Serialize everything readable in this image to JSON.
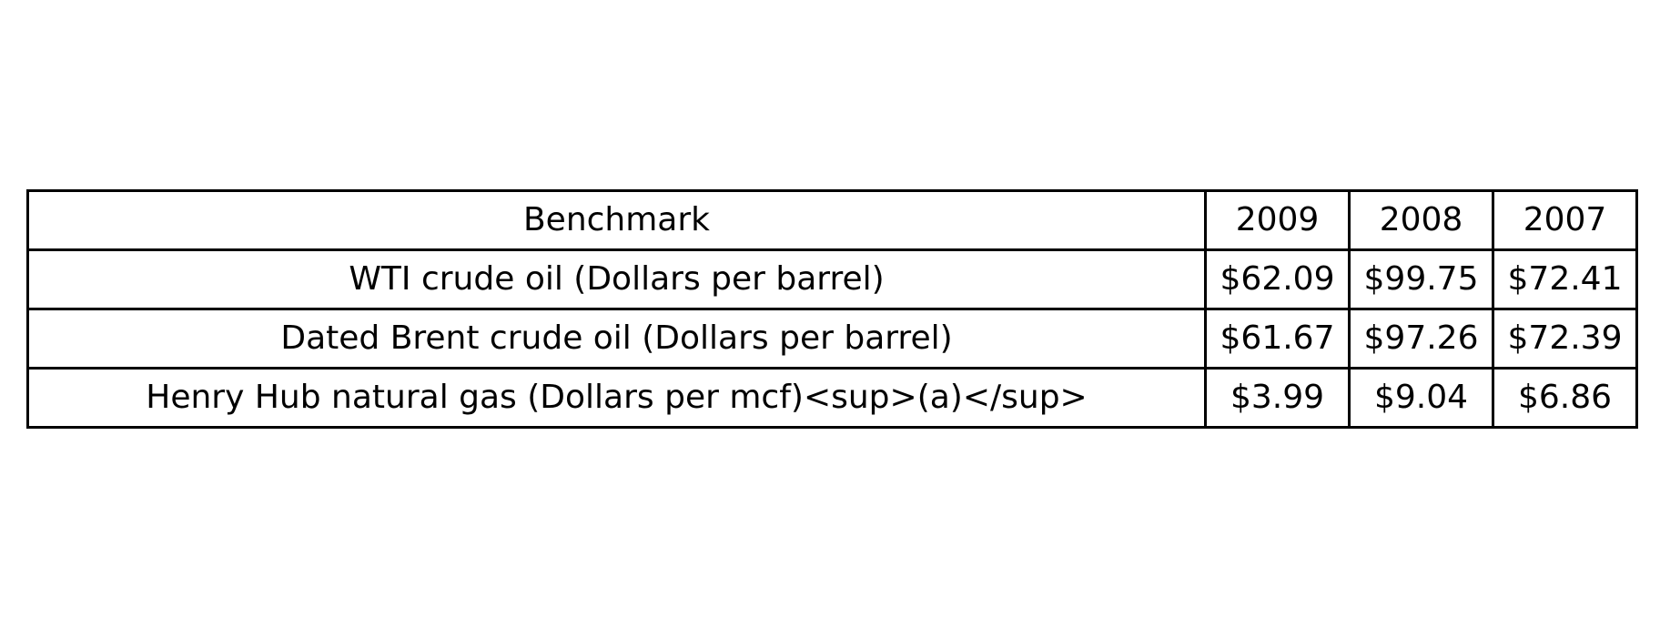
{
  "table": {
    "headers": [
      "Benchmark",
      "2009",
      "2008",
      "2007"
    ],
    "rows": [
      [
        "WTI crude oil (Dollars per barrel)",
        "$62.09",
        "$99.75",
        "$72.41"
      ],
      [
        "Dated Brent crude oil (Dollars per barrel)",
        "$61.67",
        "$97.26",
        "$72.39"
      ],
      [
        "Henry Hub natural gas (Dollars per mcf)<sup>(a)</sup>",
        "$3.99",
        "$9.04",
        "$6.86"
      ]
    ]
  }
}
